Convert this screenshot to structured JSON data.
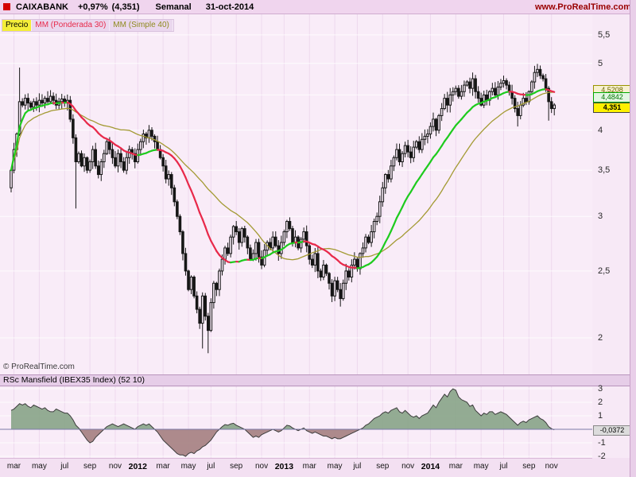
{
  "window": {
    "copyright": "© ProRealTime.com"
  },
  "header": {
    "symbol": "CAIXABANK",
    "change": "+0,97%",
    "last": "(4,351)",
    "timeframe": "Semanal",
    "date": "31-oct-2014",
    "site": "www.ProRealTime.com",
    "logo_color": "#d40000"
  },
  "legend": {
    "price_label": "Precio",
    "ma1_label": "MM (Ponderada 30)",
    "ma2_label": "MM (Simple 40)"
  },
  "indicator_header": {
    "title": "RSc Mansfield (IBEX35 Index) (52 10)"
  },
  "colors": {
    "page_bg": "#f3e0f2",
    "plot_bg": "#f9ecf8",
    "grid_h": "#ffffff",
    "grid_v": "#eed9ee",
    "candle": "#161616",
    "ma_rising": "#1ecb1e",
    "ma_falling": "#e8294a",
    "ma_simple": "#a39a33",
    "area_pos": "#87a487",
    "area_neg": "#a48080",
    "area_line": "#3c3c3c",
    "zero_line": "#7a7aa8",
    "site_red": "#990000"
  },
  "chart_data": [
    {
      "type": "candlestick",
      "title": "CAIXABANK weekly price",
      "scale": "log",
      "ylim": [
        1.77,
        5.89
      ],
      "y_ticks": [
        {
          "label": "5,5",
          "value": 5.5
        },
        {
          "label": "5",
          "value": 5
        },
        {
          "label": "4,5",
          "value": 4.5
        },
        {
          "label": "4",
          "value": 4
        },
        {
          "label": "3,5",
          "value": 3.5
        },
        {
          "label": "3",
          "value": 3
        },
        {
          "label": "2,5",
          "value": 2.5
        },
        {
          "label": "2",
          "value": 2
        }
      ],
      "price_tags": [
        {
          "label": "4,5208",
          "value": 4.5208,
          "style": "olive",
          "name": "ma-simple-40-value-tag"
        },
        {
          "label": "4,4842",
          "value": 4.4842,
          "style": "green",
          "name": "ma-weighted-30-value-tag"
        },
        {
          "label": "4,351",
          "value": 4.351,
          "style": "yellow",
          "name": "last-price-tag"
        }
      ],
      "x_labels": [
        {
          "label": "mar",
          "week": 1
        },
        {
          "label": "may",
          "week": 10
        },
        {
          "label": "jul",
          "week": 19
        },
        {
          "label": "sep",
          "week": 28
        },
        {
          "label": "nov",
          "week": 37
        },
        {
          "label": "2012",
          "week": 45,
          "bold": true
        },
        {
          "label": "mar",
          "week": 54
        },
        {
          "label": "may",
          "week": 63
        },
        {
          "label": "jul",
          "week": 71
        },
        {
          "label": "sep",
          "week": 80
        },
        {
          "label": "nov",
          "week": 89
        },
        {
          "label": "2013",
          "week": 97,
          "bold": true
        },
        {
          "label": "mar",
          "week": 106
        },
        {
          "label": "may",
          "week": 115
        },
        {
          "label": "jul",
          "week": 123
        },
        {
          "label": "sep",
          "week": 132
        },
        {
          "label": "nov",
          "week": 141
        },
        {
          "label": "2014",
          "week": 149,
          "bold": true
        },
        {
          "label": "mar",
          "week": 158
        },
        {
          "label": "may",
          "week": 167
        },
        {
          "label": "jul",
          "week": 175
        },
        {
          "label": "sep",
          "week": 184
        },
        {
          "label": "nov",
          "week": 192
        }
      ],
      "first_open": 3.3,
      "closes": [
        3.5,
        3.75,
        3.95,
        4.4,
        4.35,
        4.45,
        4.38,
        4.32,
        4.4,
        4.35,
        4.42,
        4.38,
        4.45,
        4.4,
        4.48,
        4.42,
        4.35,
        4.4,
        4.44,
        4.38,
        4.42,
        4.15,
        3.9,
        3.6,
        3.7,
        3.55,
        3.65,
        3.5,
        3.6,
        3.75,
        3.55,
        3.45,
        3.6,
        3.7,
        3.85,
        3.75,
        3.65,
        3.55,
        3.7,
        3.6,
        3.5,
        3.65,
        3.75,
        3.7,
        3.6,
        3.75,
        3.85,
        3.95,
        3.9,
        4.0,
        3.92,
        3.85,
        3.75,
        3.65,
        3.55,
        3.4,
        3.45,
        3.3,
        3.15,
        3.0,
        2.85,
        2.65,
        2.5,
        2.35,
        2.45,
        2.3,
        2.2,
        2.1,
        2.3,
        2.15,
        2.05,
        2.25,
        2.4,
        2.35,
        2.5,
        2.6,
        2.7,
        2.65,
        2.8,
        2.9,
        2.85,
        2.75,
        2.88,
        2.8,
        2.7,
        2.6,
        2.65,
        2.75,
        2.62,
        2.55,
        2.68,
        2.75,
        2.7,
        2.8,
        2.72,
        2.65,
        2.75,
        2.85,
        2.95,
        2.88,
        2.75,
        2.8,
        2.7,
        2.78,
        2.85,
        2.72,
        2.6,
        2.55,
        2.65,
        2.5,
        2.45,
        2.55,
        2.48,
        2.4,
        2.3,
        2.42,
        2.35,
        2.28,
        2.4,
        2.5,
        2.45,
        2.55,
        2.6,
        2.52,
        2.65,
        2.7,
        2.8,
        2.75,
        2.85,
        2.95,
        3.0,
        3.15,
        3.3,
        3.45,
        3.4,
        3.55,
        3.65,
        3.75,
        3.6,
        3.7,
        3.8,
        3.72,
        3.65,
        3.78,
        3.85,
        3.75,
        3.88,
        3.92,
        3.95,
        4.05,
        4.15,
        4.0,
        4.2,
        4.3,
        4.45,
        4.35,
        4.5,
        4.55,
        4.6,
        4.48,
        4.55,
        4.65,
        4.7,
        4.6,
        4.75,
        4.55,
        4.45,
        4.35,
        4.5,
        4.42,
        4.55,
        4.6,
        4.5,
        4.62,
        4.68,
        4.72,
        4.65,
        4.55,
        4.45,
        4.3,
        4.2,
        4.35,
        4.45,
        4.4,
        4.55,
        4.7,
        4.85,
        4.9,
        4.8,
        4.75,
        4.6,
        4.4,
        4.3,
        4.351
      ],
      "extra_highs": {
        "3": 4.93,
        "49": 4.07,
        "164": 4.85,
        "187": 4.97
      },
      "extra_lows": {
        "23": 3.08,
        "68": 1.93,
        "70": 1.9,
        "117": 2.22,
        "180": 4.05,
        "191": 4.13
      },
      "overlays": [
        {
          "name": "MM (Ponderada 30)",
          "kind": "weighted",
          "period": 30,
          "color_rising": "#1ecb1e",
          "color_falling": "#e8294a",
          "last_value_label": "4,4842"
        },
        {
          "name": "MM (Simple 40)",
          "kind": "simple",
          "period": 40,
          "color": "#a39a33",
          "last_value_label": "4,5208"
        }
      ],
      "last_price_label": "4,351"
    },
    {
      "type": "area",
      "title": "RSc Mansfield (IBEX35 Index) (52 10)",
      "ylim": [
        -2.12,
        3.18
      ],
      "y_ticks": [
        {
          "label": "3",
          "value": 3
        },
        {
          "label": "2",
          "value": 2
        },
        {
          "label": "1",
          "value": 1
        },
        {
          "label": "-1",
          "value": -1
        },
        {
          "label": "-2",
          "value": -2
        }
      ],
      "value_tag": {
        "label": "-0,0372",
        "value": -0.0372
      },
      "values": [
        1.4,
        1.5,
        1.7,
        1.9,
        1.8,
        1.9,
        1.7,
        1.6,
        1.8,
        1.7,
        1.6,
        1.5,
        1.6,
        1.4,
        1.3,
        1.3,
        1.5,
        1.4,
        1.3,
        1.2,
        1.2,
        1.0,
        0.7,
        0.3,
        0.1,
        -0.2,
        -0.5,
        -0.8,
        -1.0,
        -0.9,
        -0.6,
        -0.4,
        -0.2,
        0.0,
        0.2,
        0.3,
        0.4,
        0.3,
        0.2,
        0.3,
        0.4,
        0.3,
        0.2,
        0.1,
        0.0,
        0.2,
        0.3,
        0.4,
        0.3,
        0.4,
        0.2,
        0.0,
        -0.2,
        -0.5,
        -0.8,
        -1.0,
        -1.2,
        -1.4,
        -1.6,
        -1.8,
        -1.9,
        -1.9,
        -2.0,
        -1.8,
        -1.7,
        -1.8,
        -1.6,
        -1.5,
        -1.3,
        -1.2,
        -1.0,
        -0.8,
        -0.5,
        -0.2,
        0.0,
        0.2,
        0.35,
        0.3,
        0.4,
        0.45,
        0.3,
        0.2,
        0.1,
        0.0,
        -0.2,
        -0.4,
        -0.6,
        -0.5,
        -0.6,
        -0.4,
        -0.3,
        -0.2,
        -0.1,
        0.0,
        -0.1,
        -0.2,
        -0.1,
        0.1,
        0.3,
        0.25,
        0.1,
        0.0,
        -0.1,
        0.0,
        0.1,
        -0.1,
        -0.2,
        -0.3,
        -0.2,
        -0.3,
        -0.4,
        -0.5,
        -0.5,
        -0.6,
        -0.7,
        -0.6,
        -0.7,
        -0.7,
        -0.6,
        -0.5,
        -0.4,
        -0.3,
        -0.2,
        -0.1,
        0.0,
        0.1,
        0.3,
        0.4,
        0.6,
        0.8,
        0.9,
        1.0,
        1.2,
        1.3,
        1.2,
        1.4,
        1.5,
        1.6,
        1.3,
        1.2,
        1.4,
        1.2,
        1.0,
        0.9,
        1.0,
        0.8,
        1.0,
        1.1,
        1.2,
        1.5,
        1.8,
        1.6,
        2.0,
        2.3,
        2.6,
        2.4,
        2.8,
        3.0,
        2.9,
        2.4,
        2.2,
        2.1,
        2.0,
        1.7,
        1.8,
        1.4,
        1.2,
        1.0,
        1.2,
        1.1,
        1.3,
        1.3,
        1.1,
        1.2,
        1.3,
        1.2,
        1.1,
        0.9,
        0.7,
        0.5,
        0.3,
        0.5,
        0.6,
        0.5,
        0.7,
        0.8,
        0.9,
        1.0,
        0.8,
        0.7,
        0.5,
        0.2,
        0.05,
        -0.0372
      ]
    }
  ]
}
